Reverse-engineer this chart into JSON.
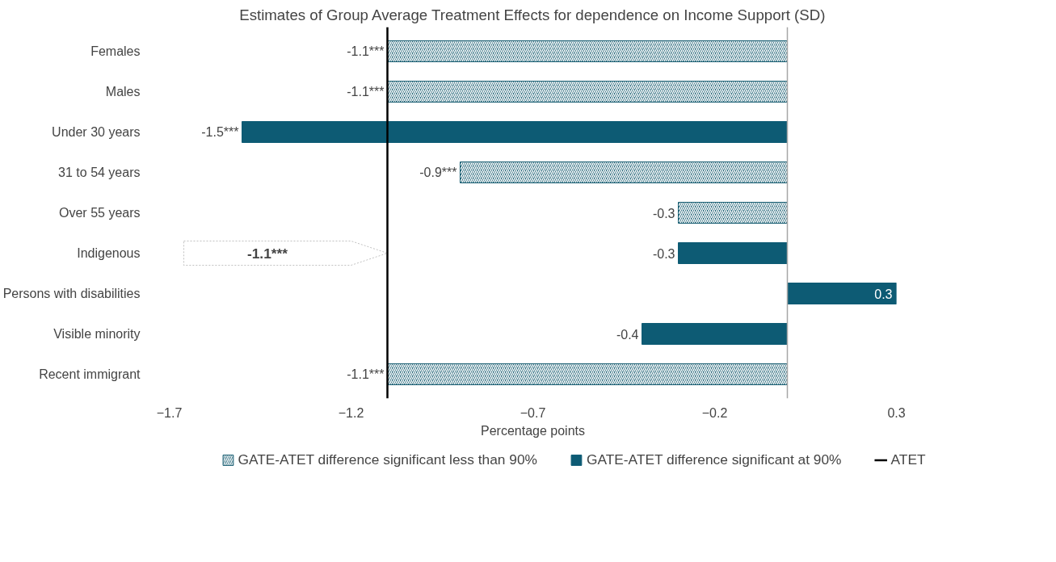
{
  "chart_data": {
    "type": "bar",
    "orientation": "horizontal",
    "title": "Estimates of Group Average Treatment Effects for dependence on Income Support (SD)",
    "xlabel": "Percentage points",
    "categories": [
      "Females",
      "Males",
      "Under 30 years",
      "31 to 54 years",
      "Over 55 years",
      "Indigenous",
      "Persons with disabilities",
      "Visible minority",
      "Recent immigrant"
    ],
    "series": [
      {
        "name": "GATE-ATET difference significant less than 90%",
        "color": "#1a5f73",
        "values": [
          -1.1,
          -1.1,
          null,
          -0.9,
          -0.3,
          null,
          null,
          null,
          -1.1
        ],
        "value_labels": [
          "-1.1***",
          "-1.1***",
          null,
          "-0.9***",
          "-0.3",
          null,
          null,
          null,
          "-1.1***"
        ]
      },
      {
        "name": "GATE-ATET difference significant at 90%",
        "color": "#0d5b74",
        "values": [
          null,
          null,
          -1.5,
          null,
          null,
          -0.3,
          0.3,
          -0.4,
          null
        ],
        "value_labels": [
          null,
          null,
          "-1.5***",
          null,
          null,
          "-0.3",
          "0.3",
          "-0.4",
          null
        ]
      }
    ],
    "ref_lines": [
      {
        "axis": "x",
        "value": -1.1,
        "label": "ATET",
        "color": "#000000",
        "line_style": "solid"
      }
    ],
    "annotations": [
      "-1.1***"
    ],
    "xlim": [
      -1.7,
      0.3
    ],
    "xticks": [
      -1.7,
      -1.2,
      -0.7,
      -0.2,
      0.3
    ],
    "grid": false,
    "legend": "bottom"
  }
}
